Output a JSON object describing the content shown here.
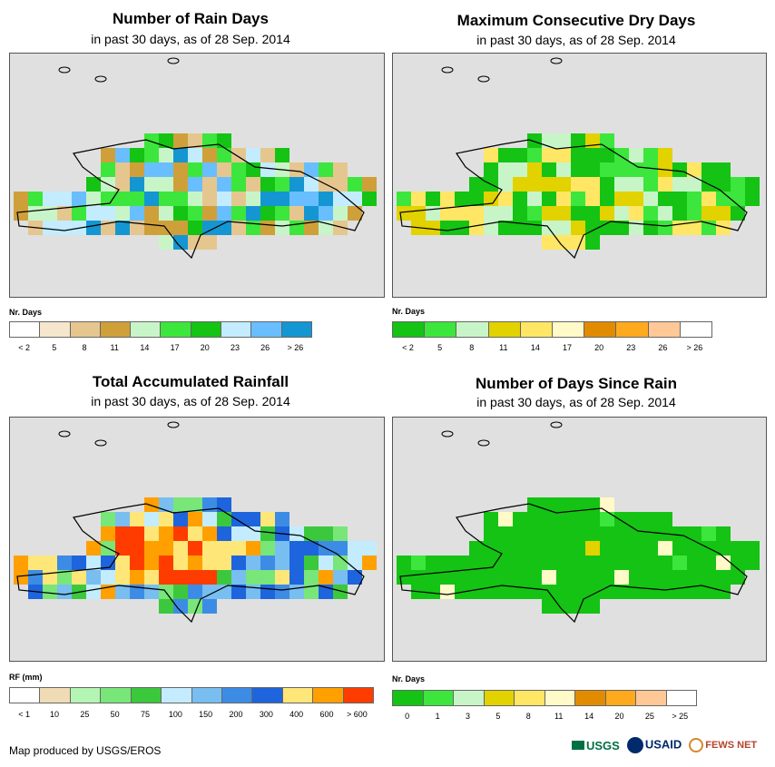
{
  "colors": {
    "map_bg": "#e0e0e0",
    "water": "#e0e0e0"
  },
  "panels": [
    {
      "id": "rain-days",
      "title": "Number of Rain Days",
      "subtitle": "in past 30 days, as of 28 Sep. 2014",
      "legend_title": "Nr. Days",
      "legend_colors": [
        "#ffffff",
        "#f5e6cc",
        "#e6c68f",
        "#cfa03a",
        "#c8f5c8",
        "#3ce63c",
        "#14c314",
        "#c3ecff",
        "#69beff",
        "#1496d2"
      ],
      "legend_labels": [
        "< 2",
        "5",
        "8",
        "11",
        "14",
        "17",
        "20",
        "23",
        "26",
        "> 26"
      ]
    },
    {
      "id": "max-dry-days",
      "title": "Maximum Consecutive Dry Days",
      "subtitle": "in past 30 days, as of 28 Sep. 2014",
      "legend_title": "Nr. Days",
      "legend_colors": [
        "#14c314",
        "#3ce63c",
        "#c8f5c8",
        "#e1d200",
        "#ffe664",
        "#fffac8",
        "#e18c00",
        "#ffaa1e",
        "#ffc896",
        "#ffffff"
      ],
      "legend_labels": [
        "< 2",
        "5",
        "8",
        "11",
        "14",
        "17",
        "20",
        "23",
        "26",
        "> 26"
      ]
    },
    {
      "id": "total-rainfall",
      "title": "Total Accumulated Rainfall",
      "subtitle": "in past 30 days, as of 28 Sep. 2014",
      "legend_title": "RF (mm)",
      "legend_colors": [
        "#ffffff",
        "#f0dcb4",
        "#b4f5b4",
        "#78e678",
        "#3cc83c",
        "#c3ecff",
        "#78bef0",
        "#3c8ce6",
        "#1e64dc",
        "#ffe678",
        "#ffa000",
        "#ff3c00"
      ],
      "legend_labels": [
        "< 1",
        "10",
        "25",
        "50",
        "75",
        "100",
        "150",
        "200",
        "300",
        "400",
        "600",
        "> 600"
      ]
    },
    {
      "id": "days-since-rain",
      "title": "Number of Days Since Rain",
      "subtitle": "in past 30 days, as of 28 Sep. 2014",
      "legend_title": "Nr. Days",
      "legend_colors": [
        "#14c314",
        "#3ce63c",
        "#c8f5c8",
        "#e1d200",
        "#ffe664",
        "#fffac8",
        "#e18c00",
        "#ffaa1e",
        "#ffc896",
        "#ffffff"
      ],
      "legend_labels": [
        "0",
        "1",
        "3",
        "5",
        "8",
        "11",
        "14",
        "20",
        "25",
        "> 25"
      ]
    }
  ],
  "footer": "Map produced by USGS/EROS",
  "logos": {
    "usgs": "USGS",
    "usaid": "USAID",
    "fewsnet": "FEWS NET"
  }
}
